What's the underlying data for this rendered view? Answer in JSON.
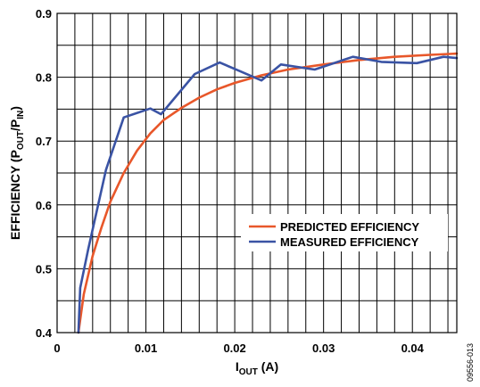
{
  "chart_data": {
    "type": "line",
    "title": "",
    "xlabel": {
      "main": "I",
      "sub": "OUT",
      "suffix": " (A)"
    },
    "ylabel": {
      "prefix": "EFFICIENCY (P",
      "sub1": "OUT",
      "mid": "/P",
      "sub2": "IN",
      "suffix": ")"
    },
    "xlim": [
      0,
      0.045
    ],
    "ylim": [
      0.4,
      0.9
    ],
    "x_tick_values": [
      0,
      0.01,
      0.02,
      0.03,
      0.04
    ],
    "x_tick_labels": [
      "0",
      "0.01",
      "0.02",
      "0.03",
      "0.04"
    ],
    "y_tick_values": [
      0.4,
      0.5,
      0.6,
      0.7,
      0.8,
      0.9
    ],
    "y_tick_labels": [
      "0.4",
      "0.5",
      "0.6",
      "0.7",
      "0.8",
      "0.9"
    ],
    "grid": true,
    "legend_position": "center-right",
    "series": [
      {
        "name": "PREDICTED EFFICIENCY",
        "color": "#e8572a",
        "x": [
          0.0024,
          0.003,
          0.004,
          0.005,
          0.006,
          0.0075,
          0.009,
          0.0105,
          0.012,
          0.014,
          0.016,
          0.018,
          0.02,
          0.023,
          0.026,
          0.03,
          0.034,
          0.038,
          0.042,
          0.045
        ],
        "values": [
          0.4,
          0.46,
          0.52,
          0.565,
          0.605,
          0.65,
          0.685,
          0.712,
          0.733,
          0.752,
          0.768,
          0.781,
          0.791,
          0.803,
          0.812,
          0.82,
          0.827,
          0.832,
          0.835,
          0.837
        ]
      },
      {
        "name": "MEASURED EFFICIENCY",
        "color": "#3a53a4",
        "x": [
          0.0024,
          0.0026,
          0.0035,
          0.0055,
          0.0075,
          0.0105,
          0.0117,
          0.0155,
          0.0183,
          0.0205,
          0.023,
          0.0252,
          0.029,
          0.0333,
          0.0365,
          0.0405,
          0.0435,
          0.045
        ],
        "values": [
          0.4,
          0.47,
          0.53,
          0.655,
          0.737,
          0.751,
          0.742,
          0.805,
          0.823,
          0.81,
          0.795,
          0.82,
          0.812,
          0.832,
          0.824,
          0.822,
          0.832,
          0.83
        ]
      }
    ]
  },
  "figure_id": "09556-013"
}
